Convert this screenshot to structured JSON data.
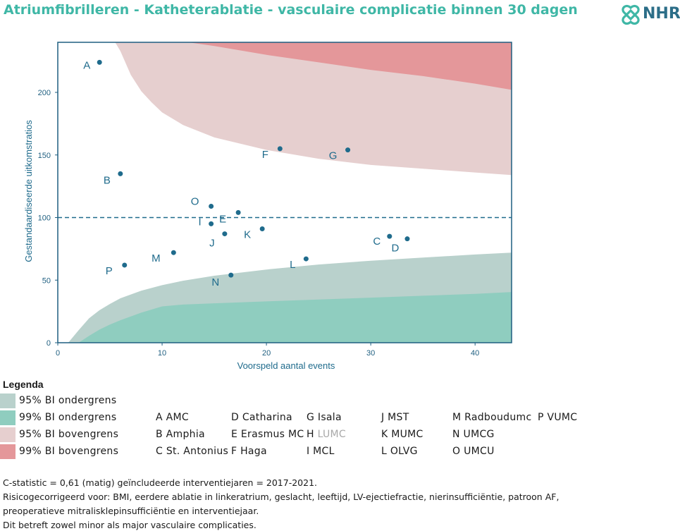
{
  "title": "Atriumfibrilleren - Katheterablatie - vasculaire complicatie binnen 30 dagen",
  "logo": {
    "text": "NHR",
    "icon": "nhr-knot-icon",
    "color": "#2c6e88"
  },
  "chart_data": {
    "type": "scatter",
    "xlabel": "Voorspeld aantal events",
    "ylabel": "Gestandaardiseerde uitkomstratios",
    "xlim": [
      0,
      43.5
    ],
    "ylim": [
      0,
      240
    ],
    "xticks": [
      "0",
      "10",
      "20",
      "30",
      "40"
    ],
    "yticks": [
      "0",
      "50",
      "100",
      "150",
      "200"
    ],
    "reference_line": {
      "y": 100,
      "style": "dashed",
      "color": "#1f6b8c"
    },
    "grid": false,
    "point_color": "#1f6b8c",
    "points": [
      {
        "label": "A",
        "x": 4.0,
        "y": 224
      },
      {
        "label": "B",
        "x": 6.0,
        "y": 135
      },
      {
        "label": "C",
        "x": 31.8,
        "y": 85
      },
      {
        "label": "D",
        "x": 33.5,
        "y": 83
      },
      {
        "label": "E",
        "x": 17.3,
        "y": 104
      },
      {
        "label": "F",
        "x": 21.3,
        "y": 155
      },
      {
        "label": "G",
        "x": 27.8,
        "y": 154
      },
      {
        "label": "I",
        "x": 14.7,
        "y": 95
      },
      {
        "label": "J",
        "x": 16.0,
        "y": 87
      },
      {
        "label": "K",
        "x": 19.6,
        "y": 91
      },
      {
        "label": "L",
        "x": 23.8,
        "y": 67
      },
      {
        "label": "M",
        "x": 11.1,
        "y": 72
      },
      {
        "label": "N",
        "x": 16.6,
        "y": 54
      },
      {
        "label": "O",
        "x": 14.7,
        "y": 109
      },
      {
        "label": "P",
        "x": 6.4,
        "y": 62
      }
    ],
    "bands": [
      {
        "name": "95% BI ondergrens",
        "color": "#b9d1cc",
        "x": [
          1,
          2,
          3,
          4,
          5,
          6,
          8,
          10,
          12,
          15,
          20,
          25,
          30,
          35,
          40,
          43.5
        ],
        "y": [
          0,
          10,
          19.5,
          26,
          31,
          35.5,
          41.5,
          46,
          49.5,
          53.5,
          58.5,
          62.5,
          65.5,
          68,
          70.5,
          72
        ]
      },
      {
        "name": "99% BI ondergrens",
        "color": "#8fcdbf",
        "x": [
          2,
          3,
          4,
          5,
          6,
          8,
          10,
          12,
          15,
          20,
          25,
          30,
          35,
          40,
          43.5
        ],
        "y": [
          0,
          5.5,
          10.5,
          14.5,
          18,
          24,
          29,
          30.5,
          31.5,
          33,
          34.5,
          36,
          37.5,
          39,
          40.5
        ]
      },
      {
        "name": "95% BI bovengrens",
        "color": "#e6cfcf",
        "x": [
          5.5,
          6,
          7,
          8,
          9,
          10,
          12,
          15,
          20,
          25,
          30,
          35,
          40,
          43.5
        ],
        "y": [
          240,
          233,
          214,
          201,
          192,
          184,
          174,
          164,
          154,
          147,
          142,
          139,
          136,
          134
        ]
      },
      {
        "name": "99% BI bovengrens",
        "color": "#e4979a",
        "x": [
          12.5,
          15,
          20,
          25,
          30,
          35,
          40,
          43.5
        ],
        "y": [
          240,
          237,
          230,
          224,
          218,
          213,
          207,
          202
        ]
      }
    ]
  },
  "legend": {
    "title": "Legenda",
    "items": [
      {
        "label": "95% BI ondergrens",
        "color": "#b9d1cc"
      },
      {
        "label": "99% BI ondergrens",
        "color": "#8fcdbf"
      },
      {
        "label": "95% BI bovengrens",
        "color": "#e6cfcf"
      },
      {
        "label": "99% BI bovengrens",
        "color": "#e4979a"
      }
    ]
  },
  "hospitals": [
    [
      {
        "text": "A AMC"
      },
      {
        "text": "B Amphia"
      },
      {
        "text": "C St. Antonius"
      }
    ],
    [
      {
        "text": "D Catharina"
      },
      {
        "text": "E Erasmus MC"
      },
      {
        "text": "F Haga"
      }
    ],
    [
      {
        "text": "G Isala"
      },
      {
        "text": "H LUMC",
        "prefix": "H ",
        "muted_part": "LUMC"
      },
      {
        "text": "I MCL"
      }
    ],
    [
      {
        "text": "J MST"
      },
      {
        "text": "K MUMC"
      },
      {
        "text": "L OLVG"
      }
    ],
    [
      {
        "text": "M Radboudumc"
      },
      {
        "text": "N UMCG"
      },
      {
        "text": "O UMCU"
      }
    ],
    [
      {
        "text": "P VUMC"
      }
    ]
  ],
  "footnotes": [
    "C-statistic = 0,61 (matig) geïncludeerde interventiejaren = 2017-2021.",
    "Risicogecorrigeerd voor: BMI, eerdere ablatie in linkeratrium, geslacht, leeftijd, LV-ejectiefractie, nierinsufficiëntie, patroon AF,",
    "preoperatieve mitralisklepinsufficiëntie en interventiejaar.",
    "Dit betreft zowel minor als major vasculaire complicaties."
  ]
}
